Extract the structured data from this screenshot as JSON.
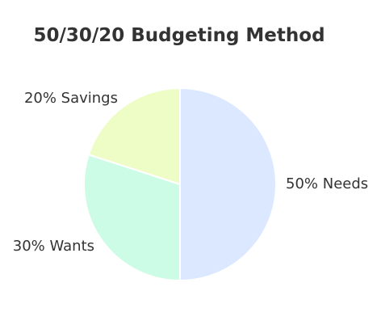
{
  "chart_data": {
    "type": "pie",
    "title": "50/30/20 Budgeting Method",
    "slices": [
      {
        "label": "50% Needs",
        "value": 50,
        "color": "#dce8ff"
      },
      {
        "label": "30% Wants",
        "value": 30,
        "color": "#ccfce6"
      },
      {
        "label": "20% Savings",
        "value": 20,
        "color": "#eefdc6"
      }
    ],
    "start": "12 o'clock",
    "direction": "clockwise",
    "legend": "none",
    "labels": "outside"
  }
}
